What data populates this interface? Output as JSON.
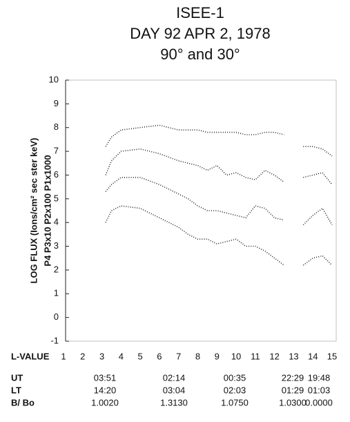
{
  "chart_data": {
    "type": "line",
    "title": [
      "ISEE-1",
      "DAY 92 APR 2, 1978",
      "90° and 30°"
    ],
    "y_label": [
      "LOG FLUX (Ions/cm² sec ster keV)",
      "P4     P3x10     P2x100     P1x1000"
    ],
    "x_label": "L-VALUE",
    "x": [
      3.2,
      3.5,
      4,
      5,
      6,
      7,
      7.5,
      8,
      8.5,
      9,
      9.5,
      10,
      10.5,
      11,
      11.5,
      12,
      12.5,
      13,
      13.5,
      14,
      14.5,
      15
    ],
    "series": [
      {
        "name": "P1x1000",
        "color": "#222222",
        "values": [
          7.2,
          7.6,
          7.9,
          8.0,
          8.1,
          7.9,
          7.9,
          7.9,
          7.8,
          7.8,
          7.8,
          7.8,
          7.7,
          7.7,
          7.8,
          7.8,
          7.7,
          null,
          7.2,
          7.2,
          7.1,
          6.8
        ]
      },
      {
        "name": "P2x100",
        "color": "#222222",
        "values": [
          6.0,
          6.6,
          7.0,
          7.1,
          6.9,
          6.6,
          6.5,
          6.4,
          6.2,
          6.4,
          6.0,
          6.1,
          5.9,
          5.8,
          6.2,
          6.0,
          5.7,
          null,
          5.9,
          6.0,
          6.1,
          5.6
        ]
      },
      {
        "name": "P3x10",
        "color": "#222222",
        "values": [
          5.3,
          5.6,
          5.9,
          5.9,
          5.6,
          5.2,
          5.0,
          4.7,
          4.5,
          4.5,
          4.4,
          4.3,
          4.2,
          4.7,
          4.6,
          4.2,
          4.1,
          null,
          3.9,
          4.3,
          4.6,
          3.9
        ]
      },
      {
        "name": "P4",
        "color": "#222222",
        "values": [
          4.0,
          4.5,
          4.7,
          4.6,
          4.2,
          3.8,
          3.5,
          3.3,
          3.3,
          3.1,
          3.2,
          3.3,
          3.0,
          3.0,
          2.8,
          2.5,
          2.2,
          null,
          2.2,
          2.5,
          2.6,
          2.2
        ]
      }
    ],
    "xlim": [
      1,
      15
    ],
    "xticks": [
      1,
      2,
      3,
      4,
      5,
      6,
      7,
      8,
      9,
      10,
      11,
      12,
      13,
      14,
      15
    ],
    "ylim": [
      -1,
      10
    ],
    "yticks": [
      -1,
      0,
      1,
      2,
      3,
      4,
      5,
      6,
      7,
      8,
      9,
      10
    ],
    "grid": false
  },
  "ephemeris": {
    "row_labels": [
      "UT",
      "LT",
      "B/ Bo"
    ],
    "rows": [
      [
        "03:51",
        "02:14",
        "00:35",
        "22:29",
        "19:48"
      ],
      [
        "14:20",
        "03:04",
        "02:03",
        "01:29",
        "01:03"
      ],
      [
        "1.0020",
        "1.3130",
        "1.0750",
        "1.0300",
        "0.0000"
      ]
    ]
  }
}
